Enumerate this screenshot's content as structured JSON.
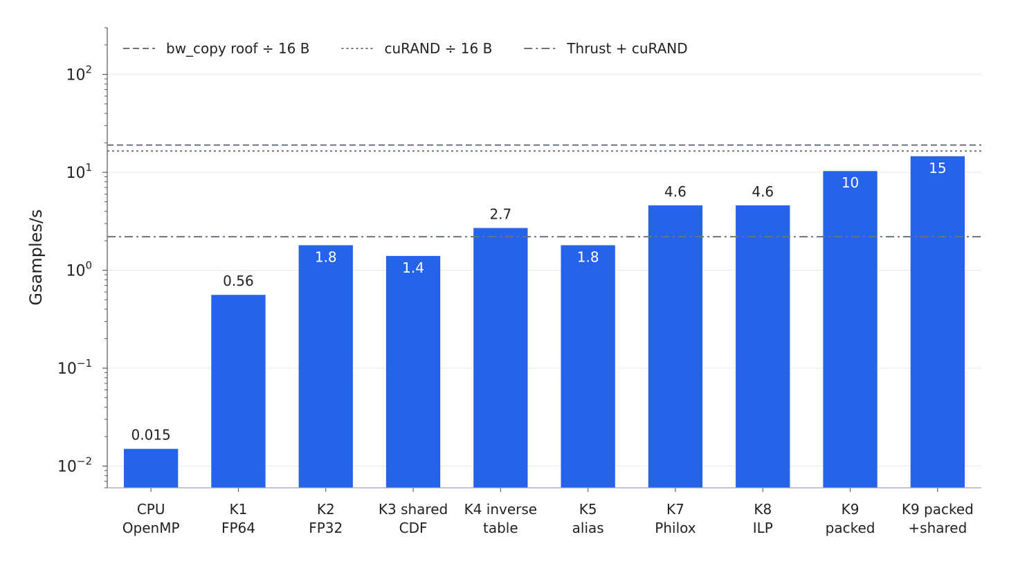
{
  "chart_data": {
    "type": "bar",
    "ylabel": "Gsamples/s",
    "xlabel": "",
    "yscale": "log",
    "ylim": [
      0.006,
      300
    ],
    "yticks": [
      {
        "value": 0.01,
        "base": "10",
        "exp": "−2"
      },
      {
        "value": 0.1,
        "base": "10",
        "exp": "−1"
      },
      {
        "value": 1,
        "base": "10",
        "exp": "0"
      },
      {
        "value": 10,
        "base": "10",
        "exp": "1"
      },
      {
        "value": 100,
        "base": "10",
        "exp": "2"
      }
    ],
    "grid": "horizontal",
    "bar_color": "#2563eb",
    "categories": [
      [
        "CPU",
        "OpenMP"
      ],
      [
        "K1",
        "FP64"
      ],
      [
        "K2",
        "FP32"
      ],
      [
        "K3 shared",
        "CDF"
      ],
      [
        "K4 inverse",
        "table"
      ],
      [
        "K5",
        "alias"
      ],
      [
        "K7",
        "Philox"
      ],
      [
        "K8",
        "ILP"
      ],
      [
        "K9",
        "packed"
      ],
      [
        "K9 packed",
        "+shared"
      ]
    ],
    "values": [
      0.015,
      0.56,
      1.8,
      1.4,
      2.7,
      1.8,
      4.6,
      4.6,
      10.3,
      14.6
    ],
    "data_labels": [
      "0.015",
      "0.56",
      "1.8",
      "1.4",
      "2.7",
      "1.8",
      "4.6",
      "4.6",
      "10",
      "15"
    ],
    "reference_lines": [
      {
        "name": "bw_copy roof ÷ 16 B",
        "value": 19,
        "style": "dashed",
        "color": "#6b7280"
      },
      {
        "name": "cuRAND ÷ 16 B",
        "value": 16.5,
        "style": "dotted",
        "color": "#6b7280"
      },
      {
        "name": "Thrust + cuRAND",
        "value": 2.2,
        "style": "dashdot",
        "color": "#6b7280"
      }
    ],
    "legend_position": "top-left"
  }
}
